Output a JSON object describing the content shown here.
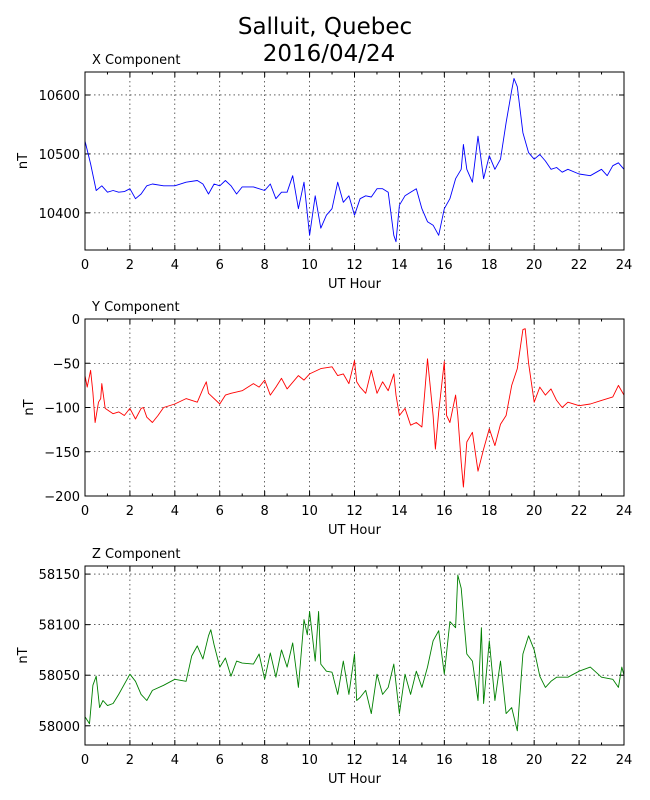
{
  "title_line1": "Salluit, Quebec",
  "title_line2": "2016/04/24",
  "chart_data": [
    {
      "type": "line",
      "title": "X Component",
      "xlabel": "UT Hour",
      "ylabel": "nT",
      "color": "#0000ff",
      "xlim": [
        0,
        24
      ],
      "ylim": [
        10337,
        10639
      ],
      "xticks": [
        0,
        2,
        4,
        6,
        8,
        10,
        12,
        14,
        16,
        18,
        20,
        22,
        24
      ],
      "yticks": [
        10400,
        10500,
        10600
      ],
      "grid": true,
      "points": [
        [
          0,
          10522
        ],
        [
          0.25,
          10483
        ],
        [
          0.5,
          10438
        ],
        [
          0.75,
          10446
        ],
        [
          1,
          10435
        ],
        [
          1.25,
          10438
        ],
        [
          1.5,
          10435
        ],
        [
          1.75,
          10436
        ],
        [
          2,
          10441
        ],
        [
          2.25,
          10424
        ],
        [
          2.5,
          10432
        ],
        [
          2.75,
          10446
        ],
        [
          3,
          10449
        ],
        [
          3.5,
          10446
        ],
        [
          4,
          10446
        ],
        [
          4.5,
          10452
        ],
        [
          5,
          10455
        ],
        [
          5.25,
          10449
        ],
        [
          5.5,
          10432
        ],
        [
          5.75,
          10449
        ],
        [
          6,
          10446
        ],
        [
          6.25,
          10455
        ],
        [
          6.5,
          10446
        ],
        [
          6.75,
          10432
        ],
        [
          7,
          10444
        ],
        [
          7.5,
          10444
        ],
        [
          8,
          10438
        ],
        [
          8.25,
          10449
        ],
        [
          8.5,
          10424
        ],
        [
          8.75,
          10435
        ],
        [
          9,
          10435
        ],
        [
          9.25,
          10463
        ],
        [
          9.5,
          10407
        ],
        [
          9.75,
          10452
        ],
        [
          10,
          10362
        ],
        [
          10.25,
          10429
        ],
        [
          10.5,
          10374
        ],
        [
          10.75,
          10396
        ],
        [
          11,
          10407
        ],
        [
          11.25,
          10452
        ],
        [
          11.5,
          10418
        ],
        [
          11.75,
          10429
        ],
        [
          12,
          10396
        ],
        [
          12.25,
          10424
        ],
        [
          12.5,
          10429
        ],
        [
          12.75,
          10427
        ],
        [
          13,
          10441
        ],
        [
          13.25,
          10441
        ],
        [
          13.5,
          10435
        ],
        [
          13.75,
          10362
        ],
        [
          13.85,
          10351
        ],
        [
          14,
          10413
        ],
        [
          14.25,
          10429
        ],
        [
          14.5,
          10435
        ],
        [
          14.75,
          10441
        ],
        [
          15,
          10407
        ],
        [
          15.25,
          10385
        ],
        [
          15.5,
          10379
        ],
        [
          15.75,
          10362
        ],
        [
          16,
          10407
        ],
        [
          16.25,
          10424
        ],
        [
          16.5,
          10458
        ],
        [
          16.75,
          10474
        ],
        [
          16.85,
          10516
        ],
        [
          17,
          10474
        ],
        [
          17.25,
          10452
        ],
        [
          17.5,
          10530
        ],
        [
          17.75,
          10458
        ],
        [
          18,
          10497
        ],
        [
          18.25,
          10474
        ],
        [
          18.5,
          10491
        ],
        [
          18.75,
          10553
        ],
        [
          19,
          10608
        ],
        [
          19.1,
          10628
        ],
        [
          19.25,
          10614
        ],
        [
          19.5,
          10536
        ],
        [
          19.75,
          10502
        ],
        [
          20,
          10491
        ],
        [
          20.25,
          10499
        ],
        [
          20.5,
          10488
        ],
        [
          20.75,
          10474
        ],
        [
          21,
          10477
        ],
        [
          21.25,
          10469
        ],
        [
          21.5,
          10474
        ],
        [
          22,
          10466
        ],
        [
          22.5,
          10463
        ],
        [
          23,
          10474
        ],
        [
          23.25,
          10463
        ],
        [
          23.5,
          10480
        ],
        [
          23.75,
          10485
        ],
        [
          24,
          10474
        ]
      ]
    },
    {
      "type": "line",
      "title": "Y Component",
      "xlabel": "UT Hour",
      "ylabel": "nT",
      "color": "#ff0000",
      "xlim": [
        0,
        24
      ],
      "ylim": [
        -200,
        0
      ],
      "xticks": [
        0,
        2,
        4,
        6,
        8,
        10,
        12,
        14,
        16,
        18,
        20,
        22,
        24
      ],
      "yticks": [
        -200,
        -150,
        -100,
        -50,
        0
      ],
      "grid": true,
      "points": [
        [
          0,
          -64
        ],
        [
          0.1,
          -77
        ],
        [
          0.25,
          -58
        ],
        [
          0.35,
          -83
        ],
        [
          0.45,
          -117
        ],
        [
          0.6,
          -94
        ],
        [
          0.7,
          -90
        ],
        [
          0.75,
          -73
        ],
        [
          0.9,
          -101
        ],
        [
          1.25,
          -107
        ],
        [
          1.5,
          -105
        ],
        [
          1.75,
          -109
        ],
        [
          2,
          -101
        ],
        [
          2.25,
          -113
        ],
        [
          2.5,
          -101
        ],
        [
          2.6,
          -100
        ],
        [
          2.75,
          -111
        ],
        [
          3,
          -117
        ],
        [
          3.25,
          -109
        ],
        [
          3.5,
          -100
        ],
        [
          4,
          -96
        ],
        [
          4.5,
          -90
        ],
        [
          5,
          -94
        ],
        [
          5.25,
          -79
        ],
        [
          5.4,
          -71
        ],
        [
          5.5,
          -84
        ],
        [
          6,
          -96
        ],
        [
          6.25,
          -86
        ],
        [
          6.5,
          -84
        ],
        [
          7,
          -81
        ],
        [
          7.5,
          -73
        ],
        [
          7.75,
          -77
        ],
        [
          8,
          -69
        ],
        [
          8.25,
          -86
        ],
        [
          8.5,
          -77
        ],
        [
          8.75,
          -67
        ],
        [
          9,
          -79
        ],
        [
          9.5,
          -64
        ],
        [
          9.75,
          -69
        ],
        [
          10,
          -62
        ],
        [
          10.5,
          -56
        ],
        [
          11,
          -54
        ],
        [
          11.25,
          -64
        ],
        [
          11.5,
          -62
        ],
        [
          11.75,
          -73
        ],
        [
          12,
          -47
        ],
        [
          12.1,
          -71
        ],
        [
          12.25,
          -77
        ],
        [
          12.5,
          -84
        ],
        [
          12.75,
          -58
        ],
        [
          13,
          -84
        ],
        [
          13.25,
          -71
        ],
        [
          13.5,
          -81
        ],
        [
          13.75,
          -62
        ],
        [
          13.85,
          -86
        ],
        [
          14,
          -109
        ],
        [
          14.25,
          -101
        ],
        [
          14.5,
          -120
        ],
        [
          14.75,
          -117
        ],
        [
          15,
          -122
        ],
        [
          15.25,
          -45
        ],
        [
          15.5,
          -109
        ],
        [
          15.6,
          -147
        ],
        [
          15.75,
          -105
        ],
        [
          16,
          -48
        ],
        [
          16.1,
          -109
        ],
        [
          16.25,
          -117
        ],
        [
          16.5,
          -86
        ],
        [
          16.6,
          -109
        ],
        [
          16.75,
          -162
        ],
        [
          16.85,
          -190
        ],
        [
          17,
          -139
        ],
        [
          17.25,
          -128
        ],
        [
          17.5,
          -172
        ],
        [
          17.75,
          -147
        ],
        [
          18,
          -124
        ],
        [
          18.25,
          -143
        ],
        [
          18.5,
          -119
        ],
        [
          18.75,
          -109
        ],
        [
          19,
          -75
        ],
        [
          19.25,
          -56
        ],
        [
          19.5,
          -12
        ],
        [
          19.6,
          -11
        ],
        [
          19.75,
          -50
        ],
        [
          20,
          -94
        ],
        [
          20.25,
          -77
        ],
        [
          20.5,
          -86
        ],
        [
          20.75,
          -79
        ],
        [
          21,
          -92
        ],
        [
          21.25,
          -100
        ],
        [
          21.5,
          -94
        ],
        [
          22,
          -98
        ],
        [
          22.5,
          -96
        ],
        [
          23,
          -92
        ],
        [
          23.5,
          -88
        ],
        [
          23.75,
          -75
        ],
        [
          24,
          -86
        ]
      ]
    },
    {
      "type": "line",
      "title": "Z Component",
      "xlabel": "UT Hour",
      "ylabel": "nT",
      "color": "#008000",
      "xlim": [
        0,
        24
      ],
      "ylim": [
        57981,
        58158
      ],
      "xticks": [
        0,
        2,
        4,
        6,
        8,
        10,
        12,
        14,
        16,
        18,
        20,
        22,
        24
      ],
      "yticks": [
        58000,
        58050,
        58100,
        58150
      ],
      "grid": true,
      "points": [
        [
          0,
          58009
        ],
        [
          0.2,
          58002
        ],
        [
          0.35,
          58040
        ],
        [
          0.5,
          58049
        ],
        [
          0.65,
          58018
        ],
        [
          0.8,
          58025
        ],
        [
          1,
          58020
        ],
        [
          1.25,
          58022
        ],
        [
          1.5,
          58031
        ],
        [
          2,
          58051
        ],
        [
          2.25,
          58044
        ],
        [
          2.5,
          58031
        ],
        [
          2.75,
          58025
        ],
        [
          3,
          58035
        ],
        [
          3.5,
          58040
        ],
        [
          4,
          58046
        ],
        [
          4.5,
          58044
        ],
        [
          4.75,
          58069
        ],
        [
          5,
          58079
        ],
        [
          5.25,
          58066
        ],
        [
          5.5,
          58089
        ],
        [
          5.6,
          58095
        ],
        [
          5.75,
          58080
        ],
        [
          6,
          58058
        ],
        [
          6.25,
          58067
        ],
        [
          6.5,
          58049
        ],
        [
          6.75,
          58064
        ],
        [
          7,
          58062
        ],
        [
          7.5,
          58061
        ],
        [
          7.75,
          58071
        ],
        [
          8,
          58046
        ],
        [
          8.25,
          58072
        ],
        [
          8.5,
          58048
        ],
        [
          8.75,
          58075
        ],
        [
          9,
          58058
        ],
        [
          9.25,
          58082
        ],
        [
          9.5,
          58038
        ],
        [
          9.75,
          58105
        ],
        [
          9.9,
          58090
        ],
        [
          10,
          58113
        ],
        [
          10.25,
          58064
        ],
        [
          10.4,
          58113
        ],
        [
          10.5,
          58061
        ],
        [
          10.75,
          58054
        ],
        [
          11,
          58053
        ],
        [
          11.25,
          58031
        ],
        [
          11.5,
          58064
        ],
        [
          11.75,
          58031
        ],
        [
          12,
          58071
        ],
        [
          12.1,
          58025
        ],
        [
          12.25,
          58028
        ],
        [
          12.5,
          58035
        ],
        [
          12.75,
          58012
        ],
        [
          13,
          58051
        ],
        [
          13.25,
          58031
        ],
        [
          13.5,
          58038
        ],
        [
          13.75,
          58061
        ],
        [
          14,
          58012
        ],
        [
          14.25,
          58051
        ],
        [
          14.5,
          58031
        ],
        [
          14.75,
          58054
        ],
        [
          15,
          58038
        ],
        [
          15.25,
          58058
        ],
        [
          15.5,
          58084
        ],
        [
          15.75,
          58094
        ],
        [
          16,
          58051
        ],
        [
          16.25,
          58103
        ],
        [
          16.5,
          58097
        ],
        [
          16.6,
          58149
        ],
        [
          16.75,
          58136
        ],
        [
          17,
          58071
        ],
        [
          17.25,
          58064
        ],
        [
          17.5,
          58025
        ],
        [
          17.65,
          58097
        ],
        [
          17.75,
          58022
        ],
        [
          18,
          58084
        ],
        [
          18.25,
          58025
        ],
        [
          18.5,
          58064
        ],
        [
          18.75,
          58012
        ],
        [
          19,
          58018
        ],
        [
          19.25,
          57995
        ],
        [
          19.5,
          58071
        ],
        [
          19.75,
          58089
        ],
        [
          20,
          58075
        ],
        [
          20.25,
          58049
        ],
        [
          20.5,
          58038
        ],
        [
          20.75,
          58044
        ],
        [
          21,
          58048
        ],
        [
          21.5,
          58048
        ],
        [
          22,
          58054
        ],
        [
          22.5,
          58058
        ],
        [
          23,
          58048
        ],
        [
          23.5,
          58046
        ],
        [
          23.75,
          58038
        ],
        [
          23.9,
          58058
        ],
        [
          24,
          58050
        ]
      ]
    }
  ]
}
